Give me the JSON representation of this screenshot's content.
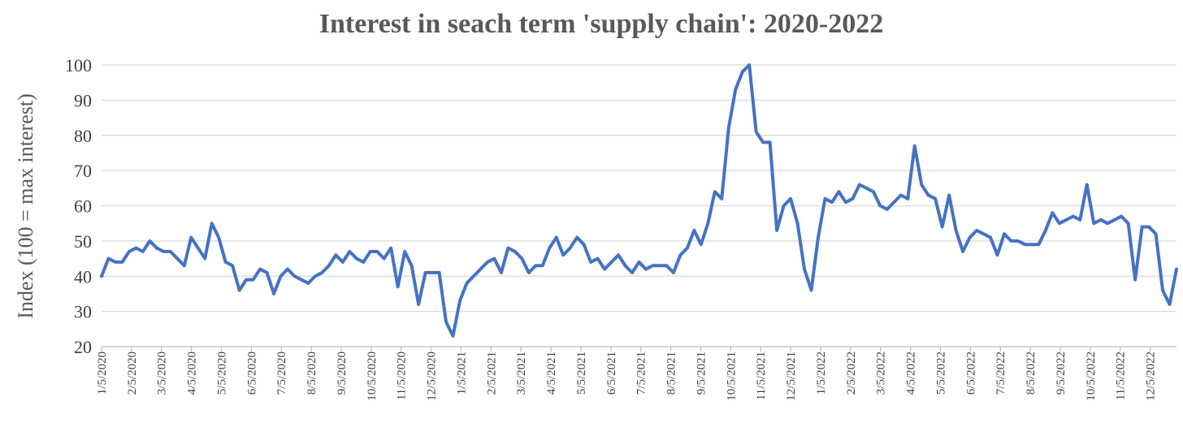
{
  "chart_data": {
    "type": "line",
    "title": "Interest in seach term 'supply chain': 2020-2022",
    "ylabel": "Index (100 = max interest)",
    "xlabel": "",
    "ylim": [
      20,
      100
    ],
    "yticks": [
      20,
      30,
      40,
      50,
      60,
      70,
      80,
      90,
      100
    ],
    "grid": true,
    "legend": "none",
    "x_tick_labels": [
      "1/5/2020",
      "2/5/2020",
      "3/5/2020",
      "4/5/2020",
      "5/5/2020",
      "6/5/2020",
      "7/5/2020",
      "8/5/2020",
      "9/5/2020",
      "10/5/2020",
      "11/5/2020",
      "12/5/2020",
      "1/5/2021",
      "2/5/2021",
      "3/5/2021",
      "4/5/2021",
      "5/5/2021",
      "6/5/2021",
      "7/5/2021",
      "8/5/2021",
      "9/5/2021",
      "10/5/2021",
      "11/5/2021",
      "12/5/2021",
      "1/5/2022",
      "2/5/2022",
      "3/5/2022",
      "4/5/2022",
      "5/5/2022",
      "6/5/2022",
      "7/5/2022",
      "8/5/2022",
      "9/5/2022",
      "10/5/2022",
      "11/5/2022",
      "12/5/2022"
    ],
    "series": [
      {
        "color": "#4472c4",
        "values": [
          40,
          45,
          44,
          44,
          47,
          48,
          47,
          50,
          48,
          47,
          47,
          45,
          43,
          51,
          48,
          45,
          55,
          51,
          44,
          43,
          36,
          39,
          39,
          42,
          41,
          35,
          40,
          42,
          40,
          39,
          38,
          40,
          41,
          43,
          46,
          44,
          47,
          45,
          44,
          47,
          47,
          45,
          48,
          37,
          47,
          43,
          32,
          41,
          41,
          41,
          27,
          23,
          33,
          38,
          40,
          42,
          44,
          45,
          41,
          48,
          47,
          45,
          41,
          43,
          43,
          48,
          51,
          46,
          48,
          51,
          49,
          44,
          45,
          42,
          44,
          46,
          43,
          41,
          44,
          42,
          43,
          43,
          43,
          41,
          46,
          48,
          53,
          49,
          55,
          64,
          62,
          82,
          93,
          98,
          100,
          81,
          78,
          78,
          53,
          60,
          62,
          55,
          42,
          36,
          51,
          62,
          61,
          64,
          61,
          62,
          66,
          65,
          64,
          60,
          59,
          61,
          63,
          62,
          77,
          66,
          63,
          62,
          54,
          63,
          53,
          47,
          51,
          53,
          52,
          51,
          46,
          52,
          50,
          50,
          49,
          49,
          49,
          53,
          58,
          55,
          56,
          57,
          56,
          66,
          55,
          56,
          55,
          56,
          57,
          55,
          39,
          54,
          54,
          52,
          36,
          32,
          42
        ]
      }
    ]
  }
}
